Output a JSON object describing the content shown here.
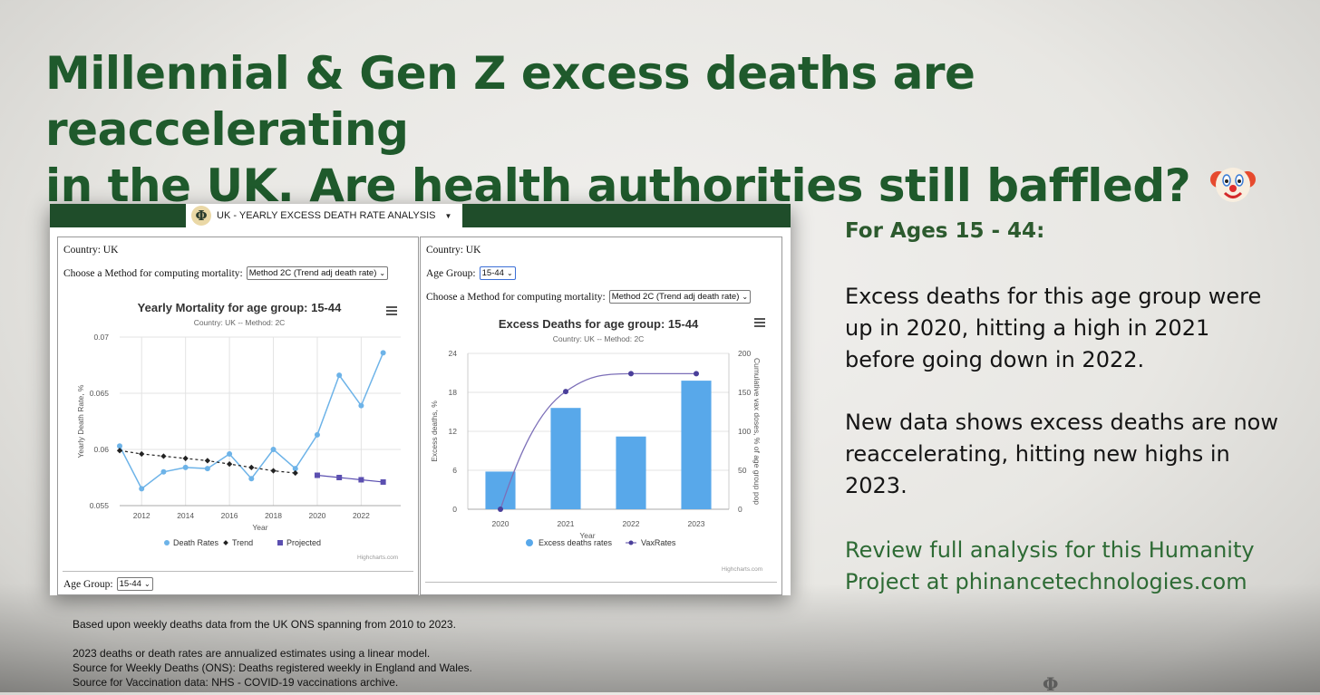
{
  "headline": {
    "line1": "Millennial & Gen Z excess deaths are reaccelerating",
    "line2": "in the UK. Are health authorities still baffled?"
  },
  "panel": {
    "logo_letter": "Φ",
    "tab_title": "UK - YEARLY EXCESS DEATH RATE ANALYSIS",
    "left": {
      "country": "Country: UK",
      "method_label": "Choose a Method for computing mortality:",
      "method_value": "Method 2C (Trend adj death rate)",
      "age_label": "Age Group:",
      "age_value": "15-44",
      "credit": "Highcharts.com"
    },
    "right": {
      "country": "Country: UK",
      "age_label": "Age Group:",
      "age_value": "15-44",
      "method_label": "Choose a Method for computing mortality:",
      "method_value": "Method 2C (Trend adj death rate)",
      "credit": "Highcharts.com"
    }
  },
  "chart_data": [
    {
      "type": "line",
      "title": "Yearly Mortality for age group: 15-44",
      "subtitle": "Country: UK -- Method: 2C",
      "xlabel": "Year",
      "ylabel": "Yearly Death Rate, %",
      "xlim": [
        2011,
        2023.8
      ],
      "ylim": [
        0.055,
        0.07
      ],
      "x_ticks": [
        2012,
        2014,
        2016,
        2018,
        2020,
        2022
      ],
      "y_ticks": [
        "0.055",
        "0.06",
        "0.065",
        "0.07"
      ],
      "grid": true,
      "legend": "bottom",
      "series": [
        {
          "name": "Death Rates",
          "color": "#6db3e8",
          "x": [
            2011,
            2012,
            2013,
            2014,
            2015,
            2016,
            2017,
            2018,
            2019,
            2020,
            2021,
            2022,
            2023
          ],
          "y": [
            0.0603,
            0.0565,
            0.058,
            0.0584,
            0.0583,
            0.0596,
            0.0574,
            0.06,
            0.0583,
            0.0613,
            0.0666,
            0.0639,
            0.0686
          ]
        },
        {
          "name": "Trend",
          "color": "#222222",
          "dashed": true,
          "x": [
            2011,
            2012,
            2013,
            2014,
            2015,
            2016,
            2017,
            2018,
            2019
          ],
          "y": [
            0.0599,
            0.0596,
            0.0594,
            0.0592,
            0.059,
            0.0587,
            0.0584,
            0.0581,
            0.0579
          ]
        },
        {
          "name": "Projected",
          "color": "#5b4fb0",
          "x": [
            2020,
            2021,
            2022,
            2023
          ],
          "y": [
            0.0577,
            0.0575,
            0.0573,
            0.0571
          ]
        }
      ]
    },
    {
      "type": "bar",
      "title": "Excess Deaths for age group: 15-44",
      "subtitle": "Country: UK -- Method: 2C",
      "xlabel": "Year",
      "ylabel": "Excess deaths, %",
      "ylabel_right": "Cumulative vax doses, % of age group pop",
      "categories": [
        "2020",
        "2021",
        "2022",
        "2023"
      ],
      "ylim": [
        0,
        24
      ],
      "ylim_right": [
        0,
        200
      ],
      "y_ticks": [
        0,
        6,
        12,
        18,
        24
      ],
      "y_ticks_right": [
        0,
        50,
        100,
        150,
        200
      ],
      "legend": "bottom",
      "series": [
        {
          "name": "Excess deaths rates",
          "color": "#58a8ea",
          "values": [
            5.8,
            15.6,
            11.2,
            19.8
          ]
        },
        {
          "name": "VaxRates",
          "color": "#7c6fb8",
          "axis": "right",
          "values": [
            0,
            151,
            174,
            174
          ]
        }
      ]
    }
  ],
  "side": {
    "heading": "For Ages 15 - 44:",
    "p1": "Excess deaths for this age group were up in 2020, hitting a high in 2021 before going down in 2022.",
    "p2": "New data shows excess deaths are now reaccelerating, hitting new highs in 2023.",
    "link": "Review full analysis for this Humanity Project at phinancetechnologies.com"
  },
  "notes": {
    "line1": "Based upon weekly deaths data from the UK ONS spanning from 2010 to 2023.",
    "line2": "2023 deaths or death rates are annualized estimates using a linear model.",
    "line3": "Source for Weekly Deaths (ONS): Deaths registered weekly in England and Wales.",
    "line4": "Source for Vaccination data: NHS - COVID-19 vaccinations archive."
  },
  "colors": {
    "headline": "#1f5a2c",
    "panel_bar": "#1f4d2a",
    "link": "#2e6b35"
  }
}
